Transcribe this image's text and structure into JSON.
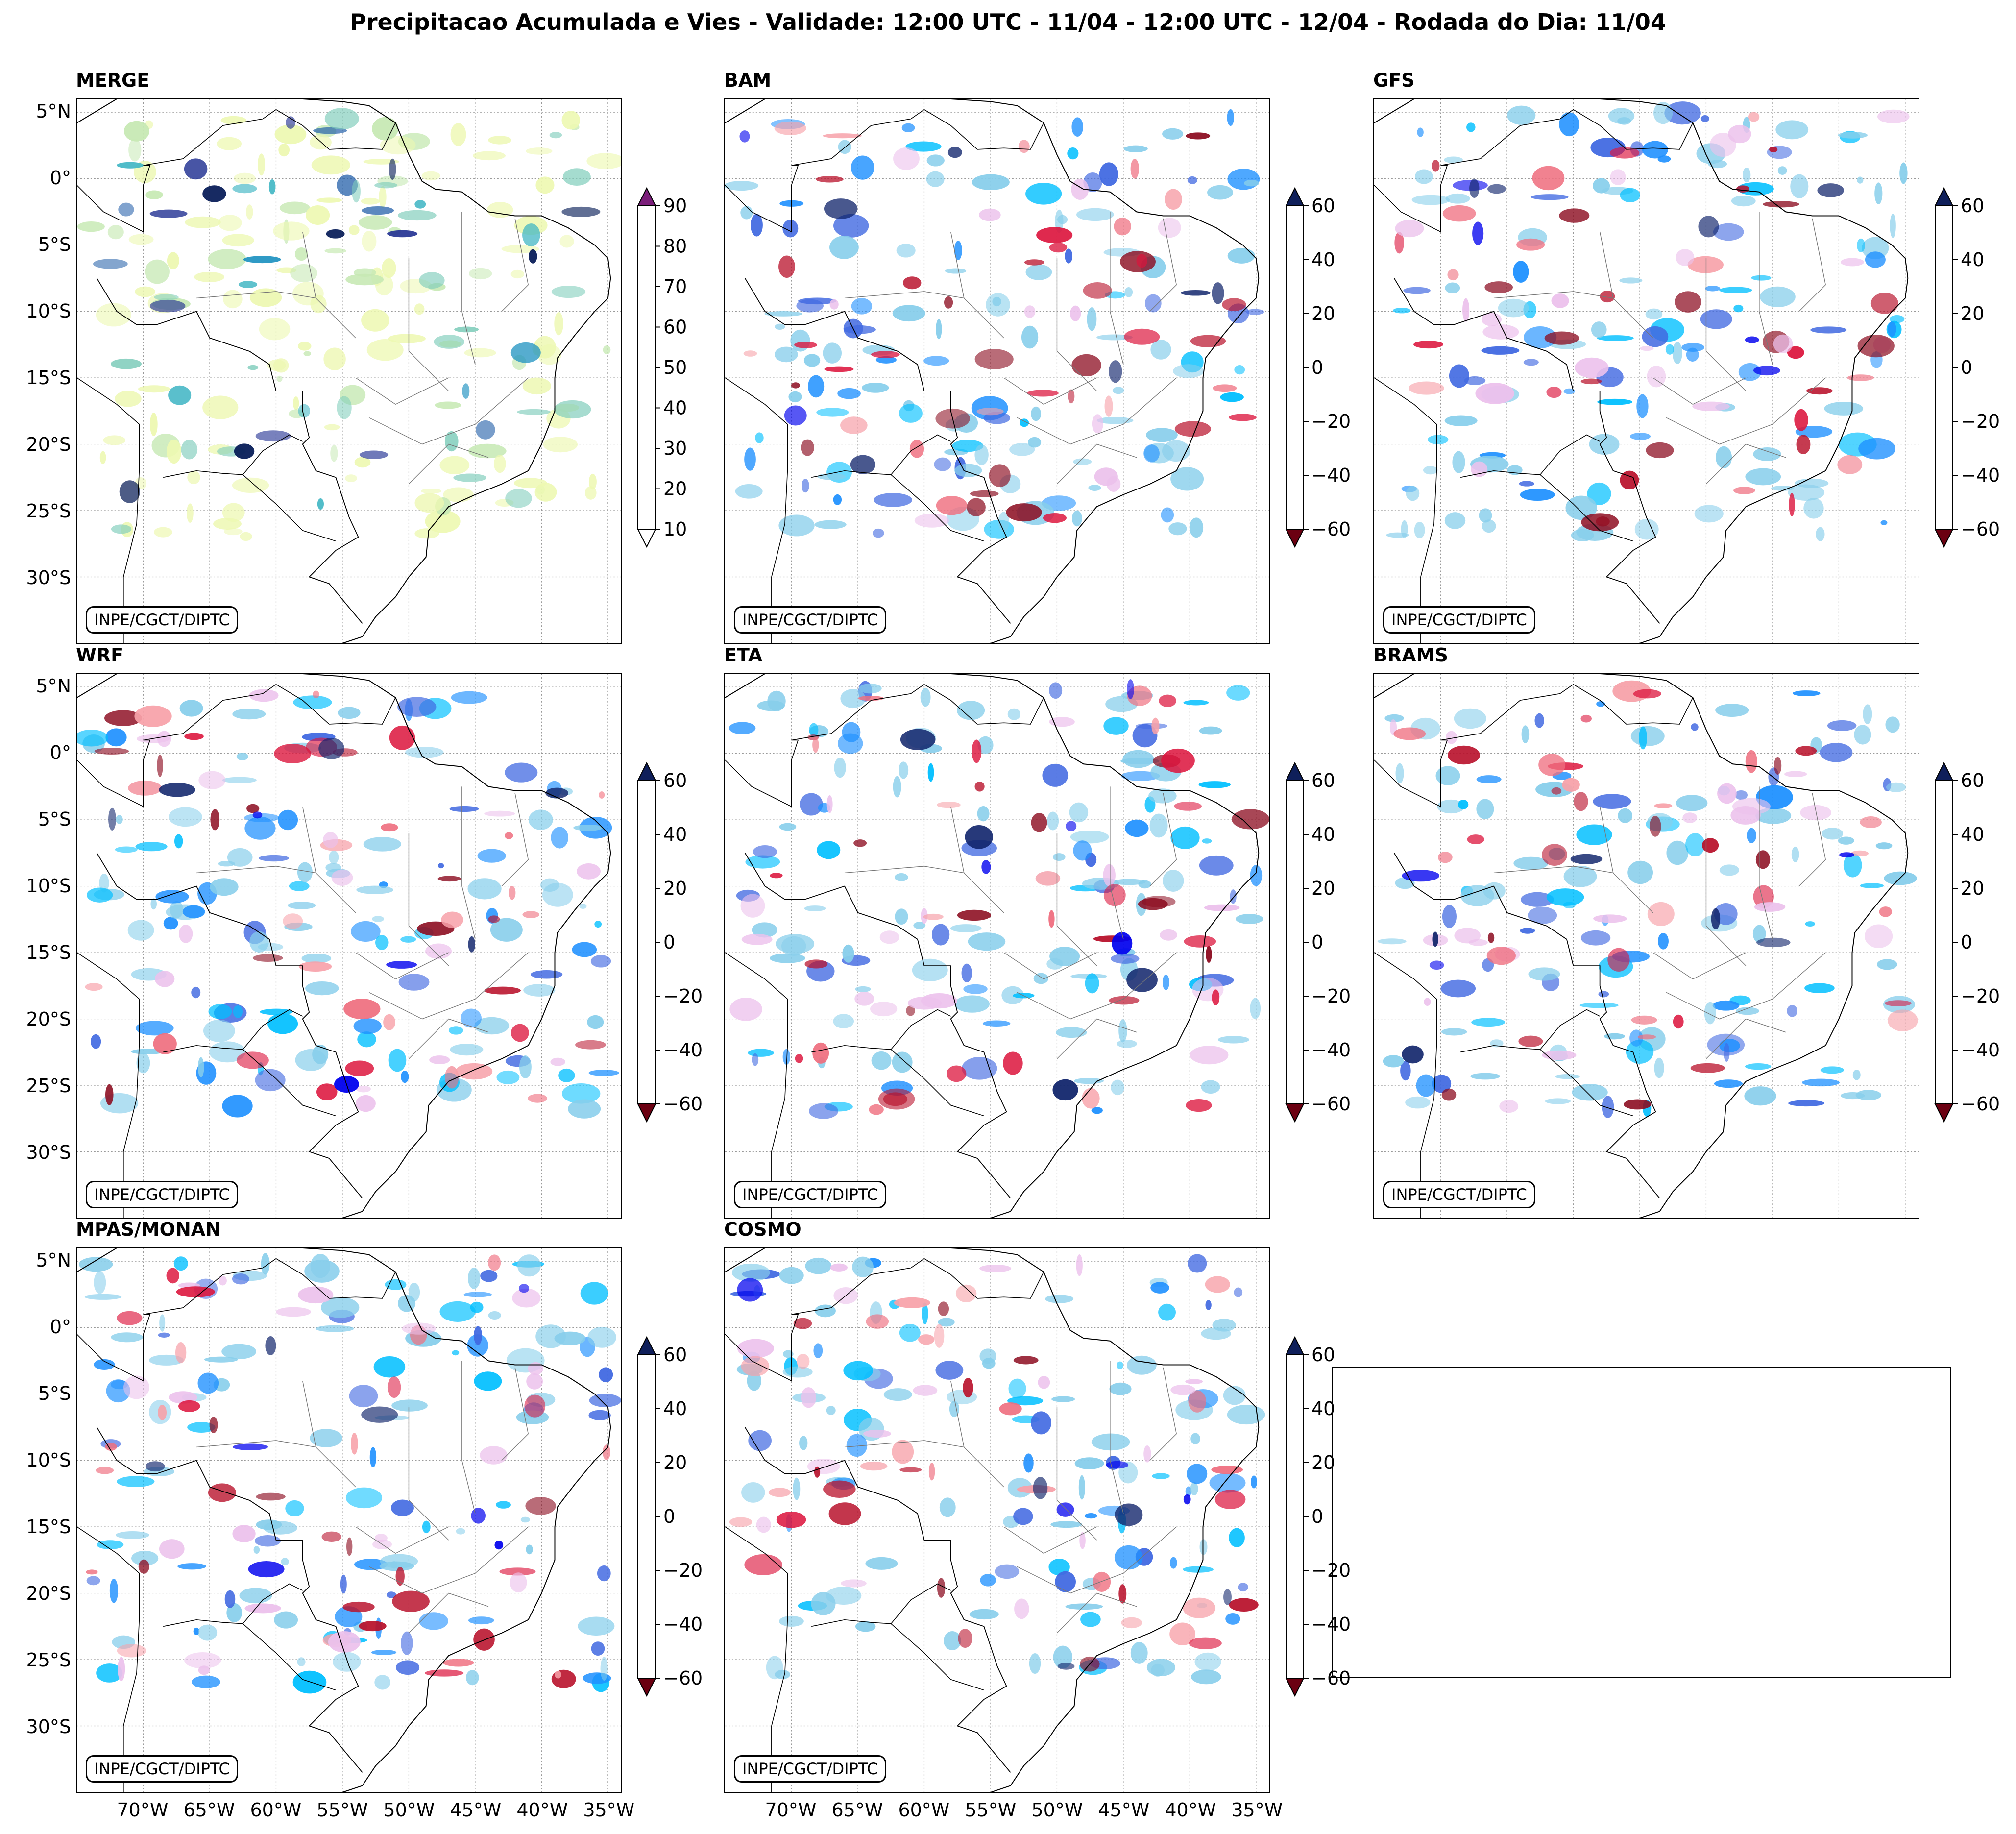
{
  "title": "Precipitacao Acumulada e Vies - Validade: 12:00 UTC - 11/04 - 12:00 UTC - 12/04 - Rodada do Dia: 11/04",
  "credit": "INPE/CGCT/DIPTC",
  "lat_labels": [
    "5°N",
    "0°",
    "5°S",
    "10°S",
    "15°S",
    "20°S",
    "25°S",
    "30°S"
  ],
  "lon_labels": [
    "70°W",
    "65°W",
    "60°W",
    "55°W",
    "50°W",
    "45°W",
    "40°W",
    "35°W"
  ],
  "panels": [
    {
      "name": "MERGE",
      "type": "precipitation"
    },
    {
      "name": "BAM",
      "type": "bias"
    },
    {
      "name": "GFS",
      "type": "bias"
    },
    {
      "name": "WRF",
      "type": "bias"
    },
    {
      "name": "ETA",
      "type": "bias"
    },
    {
      "name": "BRAMS",
      "type": "bias"
    },
    {
      "name": "MPAS/MONAN",
      "type": "bias"
    },
    {
      "name": "COSMO",
      "type": "bias"
    }
  ],
  "precip_colorbar": {
    "ticks": [
      "90",
      "80",
      "70",
      "60",
      "50",
      "40",
      "30",
      "20",
      "10"
    ],
    "colors": [
      "#edf8b1",
      "#c7e9b4",
      "#7fcdbb",
      "#41b6c4",
      "#1d91c0",
      "#225ea8",
      "#253494",
      "#081d58"
    ],
    "extend_max_color": "#7b1e7a",
    "extend_min_color": "#ffffff"
  },
  "bias_colorbar": {
    "ticks": [
      "60",
      "40",
      "20",
      "0",
      "−20",
      "−40",
      "−60"
    ],
    "colors": [
      "#8b0a1e",
      "#b8102a",
      "#dc143c",
      "#ef6f7f",
      "#f7a1a9",
      "#ecc1ec",
      "#ffffff",
      "#ffffff",
      "#87ceeb",
      "#00bfff",
      "#1e90ff",
      "#4169e1",
      "#0000ee",
      "#10246b"
    ],
    "extend_max_color": "#0f1f5a",
    "extend_min_color": "#6b0011"
  }
}
